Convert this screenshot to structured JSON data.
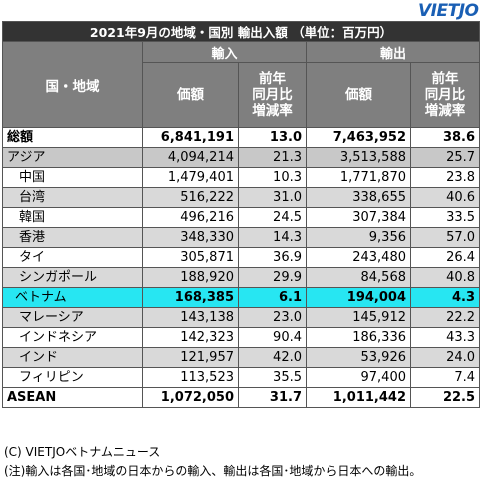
{
  "logo": "VIETJO",
  "title": "2021年9月の地域・国別 輸出入額 （単位：百万円）",
  "headers": {
    "region": "国・地域",
    "import_group": "輸入",
    "export_group": "輸出",
    "value": "価額",
    "change": "前年\n同月比\n増減率"
  },
  "rows": [
    {
      "name": "総額",
      "imp": "6,841,191",
      "imp_chg": "13.0",
      "exp": "7,463,952",
      "exp_chg": "38.6"
    },
    {
      "name": "アジア",
      "imp": "4,094,214",
      "imp_chg": "21.3",
      "exp": "3,513,588",
      "exp_chg": "25.7"
    },
    {
      "name": "中国",
      "imp": "1,479,401",
      "imp_chg": "10.3",
      "exp": "1,771,870",
      "exp_chg": "23.8"
    },
    {
      "name": "台湾",
      "imp": "516,222",
      "imp_chg": "31.0",
      "exp": "338,655",
      "exp_chg": "40.6"
    },
    {
      "name": "韓国",
      "imp": "496,216",
      "imp_chg": "24.5",
      "exp": "307,384",
      "exp_chg": "33.5"
    },
    {
      "name": "香港",
      "imp": "348,330",
      "imp_chg": "14.3",
      "exp": "9,356",
      "exp_chg": "57.0"
    },
    {
      "name": "タイ",
      "imp": "305,871",
      "imp_chg": "36.9",
      "exp": "243,480",
      "exp_chg": "26.4"
    },
    {
      "name": "シンガポール",
      "imp": "188,920",
      "imp_chg": "29.9",
      "exp": "84,568",
      "exp_chg": "40.8"
    },
    {
      "name": "ベトナム",
      "imp": "168,385",
      "imp_chg": "6.1",
      "exp": "194,004",
      "exp_chg": "4.3"
    },
    {
      "name": "マレーシア",
      "imp": "143,138",
      "imp_chg": "23.0",
      "exp": "145,912",
      "exp_chg": "22.2"
    },
    {
      "name": "インドネシア",
      "imp": "142,323",
      "imp_chg": "90.4",
      "exp": "186,336",
      "exp_chg": "43.3"
    },
    {
      "name": "インド",
      "imp": "121,957",
      "imp_chg": "42.0",
      "exp": "53,926",
      "exp_chg": "24.0"
    },
    {
      "name": "フィリピン",
      "imp": "113,523",
      "imp_chg": "35.5",
      "exp": "97,400",
      "exp_chg": "7.4"
    },
    {
      "name": "ASEAN",
      "imp": "1,072,050",
      "imp_chg": "31.7",
      "exp": "1,011,442",
      "exp_chg": "22.5"
    }
  ],
  "notes": {
    "credit": "(C) VIETJOベトナムニュース",
    "note": "(注)輸入は各国･地域の日本からの輸入、輸出は各国･地域から日本への輸出。"
  },
  "colors": {
    "title_bg": "#333333",
    "header_bg": "#7f7f7f",
    "region_bg": "#c8c8c8",
    "grey_row_bg": "#d9d9d9",
    "vietnam_highlight": "#27e6f2",
    "logo": "#1a5fb4"
  }
}
